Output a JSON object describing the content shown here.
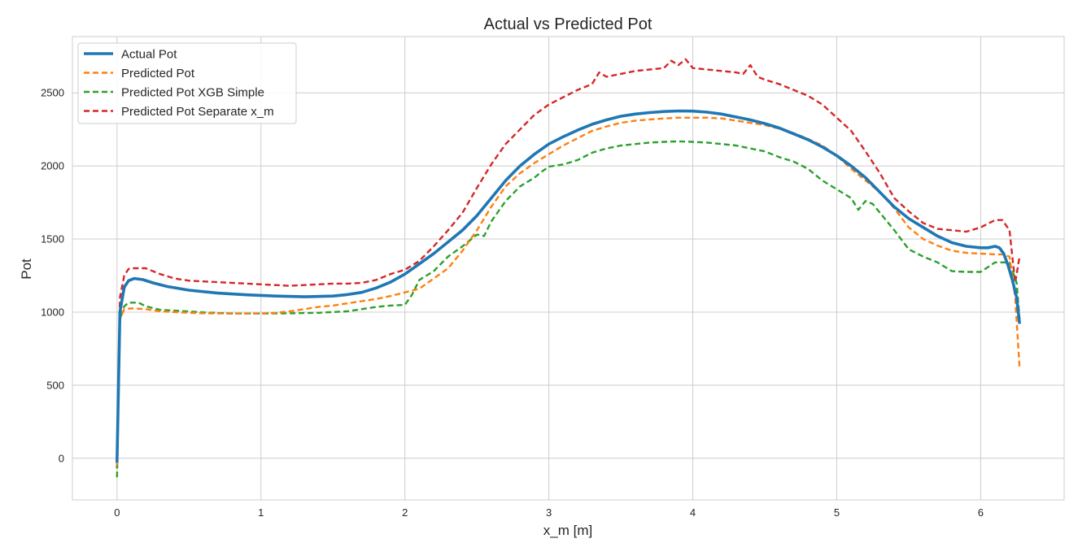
{
  "chart_data": {
    "type": "line",
    "title": "Actual vs Predicted Pot",
    "xlabel": "x_m [m]",
    "ylabel": "Pot",
    "xlim": [
      -0.31,
      6.58
    ],
    "ylim": [
      -285,
      2885
    ],
    "xticks": [
      0,
      1,
      2,
      3,
      4,
      5,
      6
    ],
    "yticks": [
      0,
      500,
      1000,
      1500,
      2000,
      2500
    ],
    "grid": true,
    "legend_position": "top-left",
    "series": [
      {
        "name": "Actual Pot",
        "color": "#1f77b4",
        "style": "solid",
        "x": [
          0,
          0.02,
          0.05,
          0.08,
          0.12,
          0.18,
          0.25,
          0.35,
          0.5,
          0.7,
          0.9,
          1.1,
          1.3,
          1.5,
          1.6,
          1.7,
          1.8,
          1.9,
          2.0,
          2.1,
          2.2,
          2.3,
          2.4,
          2.5,
          2.6,
          2.7,
          2.8,
          2.9,
          3.0,
          3.1,
          3.2,
          3.3,
          3.4,
          3.5,
          3.6,
          3.7,
          3.8,
          3.9,
          4.0,
          4.1,
          4.2,
          4.3,
          4.4,
          4.5,
          4.6,
          4.7,
          4.8,
          4.9,
          5.0,
          5.1,
          5.2,
          5.3,
          5.4,
          5.5,
          5.6,
          5.7,
          5.8,
          5.9,
          6.0,
          6.05,
          6.1,
          6.13,
          6.16,
          6.19,
          6.22,
          6.25,
          6.27
        ],
        "y": [
          -30,
          1000,
          1170,
          1215,
          1230,
          1222,
          1200,
          1175,
          1150,
          1130,
          1118,
          1110,
          1105,
          1110,
          1120,
          1135,
          1165,
          1205,
          1260,
          1330,
          1400,
          1480,
          1560,
          1660,
          1780,
          1900,
          2000,
          2080,
          2150,
          2200,
          2245,
          2285,
          2315,
          2340,
          2355,
          2365,
          2372,
          2376,
          2375,
          2368,
          2355,
          2335,
          2315,
          2290,
          2260,
          2220,
          2180,
          2130,
          2070,
          2000,
          1920,
          1820,
          1720,
          1640,
          1580,
          1520,
          1475,
          1450,
          1440,
          1440,
          1450,
          1440,
          1400,
          1320,
          1220,
          1100,
          920
        ]
      },
      {
        "name": "Predicted Pot",
        "color": "#ff7f0e",
        "style": "dashed",
        "x": [
          0,
          0.02,
          0.05,
          0.1,
          0.2,
          0.3,
          0.4,
          0.5,
          0.6,
          0.8,
          1.0,
          1.1,
          1.2,
          1.3,
          1.4,
          1.5,
          1.6,
          1.7,
          1.8,
          1.9,
          2.0,
          2.1,
          2.2,
          2.3,
          2.4,
          2.5,
          2.6,
          2.7,
          2.8,
          2.9,
          3.0,
          3.1,
          3.2,
          3.3,
          3.4,
          3.5,
          3.6,
          3.7,
          3.8,
          3.9,
          4.0,
          4.1,
          4.2,
          4.3,
          4.4,
          4.5,
          4.6,
          4.7,
          4.8,
          4.9,
          5.0,
          5.1,
          5.2,
          5.3,
          5.4,
          5.5,
          5.6,
          5.7,
          5.8,
          5.9,
          6.0,
          6.1,
          6.15,
          6.2,
          6.24,
          6.27
        ],
        "y": [
          -50,
          950,
          1020,
          1025,
          1020,
          1005,
          1000,
          995,
          992,
          990,
          990,
          995,
          1005,
          1020,
          1035,
          1045,
          1060,
          1075,
          1090,
          1110,
          1135,
          1160,
          1230,
          1300,
          1420,
          1560,
          1720,
          1860,
          1950,
          2020,
          2080,
          2140,
          2190,
          2240,
          2270,
          2295,
          2310,
          2318,
          2325,
          2330,
          2330,
          2330,
          2325,
          2310,
          2295,
          2280,
          2255,
          2225,
          2185,
          2140,
          2070,
          1980,
          1900,
          1820,
          1710,
          1580,
          1500,
          1455,
          1420,
          1405,
          1400,
          1395,
          1395,
          1380,
          1100,
          620
        ]
      },
      {
        "name": "Predicted Pot XGB Simple",
        "color": "#2ca02c",
        "style": "dashed",
        "x": [
          0,
          0.02,
          0.05,
          0.08,
          0.15,
          0.2,
          0.3,
          0.4,
          0.6,
          0.8,
          1.0,
          1.2,
          1.4,
          1.5,
          1.6,
          1.7,
          1.8,
          1.9,
          2.0,
          2.05,
          2.1,
          2.2,
          2.3,
          2.4,
          2.45,
          2.5,
          2.55,
          2.6,
          2.7,
          2.8,
          2.9,
          2.95,
          3.0,
          3.1,
          3.2,
          3.3,
          3.4,
          3.5,
          3.6,
          3.7,
          3.8,
          3.9,
          4.0,
          4.1,
          4.2,
          4.3,
          4.4,
          4.5,
          4.6,
          4.7,
          4.8,
          4.9,
          5.0,
          5.1,
          5.15,
          5.2,
          5.25,
          5.3,
          5.4,
          5.5,
          5.6,
          5.7,
          5.8,
          5.9,
          6.0,
          6.1,
          6.2,
          6.25,
          6.27
        ],
        "y": [
          -130,
          950,
          1040,
          1065,
          1065,
          1040,
          1015,
          1010,
          998,
          990,
          990,
          992,
          995,
          1000,
          1005,
          1020,
          1035,
          1045,
          1050,
          1120,
          1220,
          1280,
          1380,
          1450,
          1490,
          1530,
          1520,
          1620,
          1760,
          1860,
          1920,
          1960,
          1995,
          2010,
          2040,
          2090,
          2120,
          2140,
          2150,
          2160,
          2165,
          2168,
          2165,
          2160,
          2150,
          2140,
          2120,
          2100,
          2060,
          2030,
          1980,
          1900,
          1840,
          1780,
          1700,
          1760,
          1740,
          1680,
          1560,
          1430,
          1380,
          1340,
          1280,
          1275,
          1275,
          1340,
          1340,
          1200,
          950
        ]
      },
      {
        "name": "Predicted Pot Separate x_m",
        "color": "#d62728",
        "style": "dashed",
        "x": [
          0,
          0.02,
          0.05,
          0.08,
          0.1,
          0.2,
          0.3,
          0.4,
          0.5,
          0.6,
          0.8,
          1.0,
          1.1,
          1.2,
          1.3,
          1.4,
          1.5,
          1.6,
          1.7,
          1.8,
          1.9,
          2.0,
          2.1,
          2.2,
          2.3,
          2.4,
          2.5,
          2.6,
          2.7,
          2.8,
          2.9,
          3.0,
          3.1,
          3.2,
          3.3,
          3.35,
          3.4,
          3.5,
          3.6,
          3.7,
          3.8,
          3.85,
          3.9,
          3.95,
          4.0,
          4.1,
          4.2,
          4.3,
          4.35,
          4.4,
          4.45,
          4.5,
          4.6,
          4.7,
          4.8,
          4.9,
          5.0,
          5.1,
          5.2,
          5.3,
          5.4,
          5.5,
          5.6,
          5.7,
          5.8,
          5.9,
          6.0,
          6.1,
          6.15,
          6.2,
          6.24,
          6.27
        ],
        "y": [
          -70,
          1100,
          1250,
          1295,
          1300,
          1300,
          1260,
          1230,
          1215,
          1210,
          1200,
          1190,
          1185,
          1180,
          1185,
          1190,
          1195,
          1195,
          1200,
          1220,
          1260,
          1290,
          1350,
          1450,
          1560,
          1680,
          1850,
          2010,
          2150,
          2250,
          2350,
          2420,
          2470,
          2520,
          2560,
          2640,
          2610,
          2630,
          2650,
          2660,
          2670,
          2720,
          2690,
          2730,
          2670,
          2660,
          2650,
          2640,
          2630,
          2690,
          2610,
          2590,
          2560,
          2520,
          2480,
          2420,
          2330,
          2240,
          2100,
          1950,
          1780,
          1690,
          1610,
          1570,
          1560,
          1550,
          1580,
          1630,
          1630,
          1560,
          1200,
          1380
        ]
      }
    ]
  }
}
